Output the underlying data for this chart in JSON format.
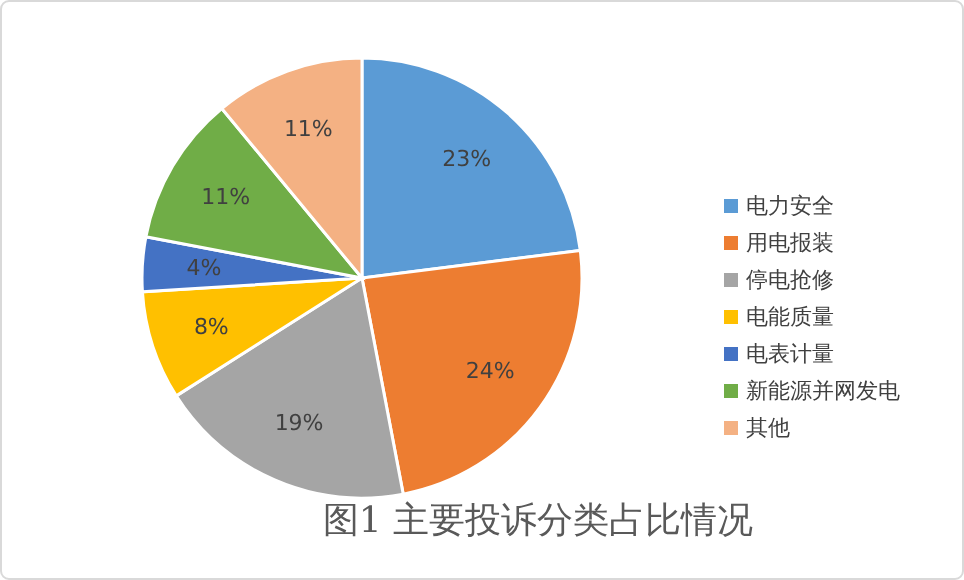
{
  "chart_data": {
    "type": "pie",
    "title": "图1 主要投诉分类占比情况",
    "categories": [
      "电力安全",
      "用电报装",
      "停电抢修",
      "电能质量",
      "电表计量",
      "新能源并网发电",
      "其他"
    ],
    "values": [
      23,
      24,
      19,
      8,
      4,
      11,
      11
    ],
    "value_labels": [
      "23%",
      "24%",
      "19%",
      "8%",
      "4%",
      "11%",
      "11%"
    ],
    "colors": [
      "#5b9bd5",
      "#ed7d31",
      "#a5a5a5",
      "#ffc000",
      "#4472c4",
      "#70ad47",
      "#f4b183"
    ],
    "legend": "right"
  }
}
